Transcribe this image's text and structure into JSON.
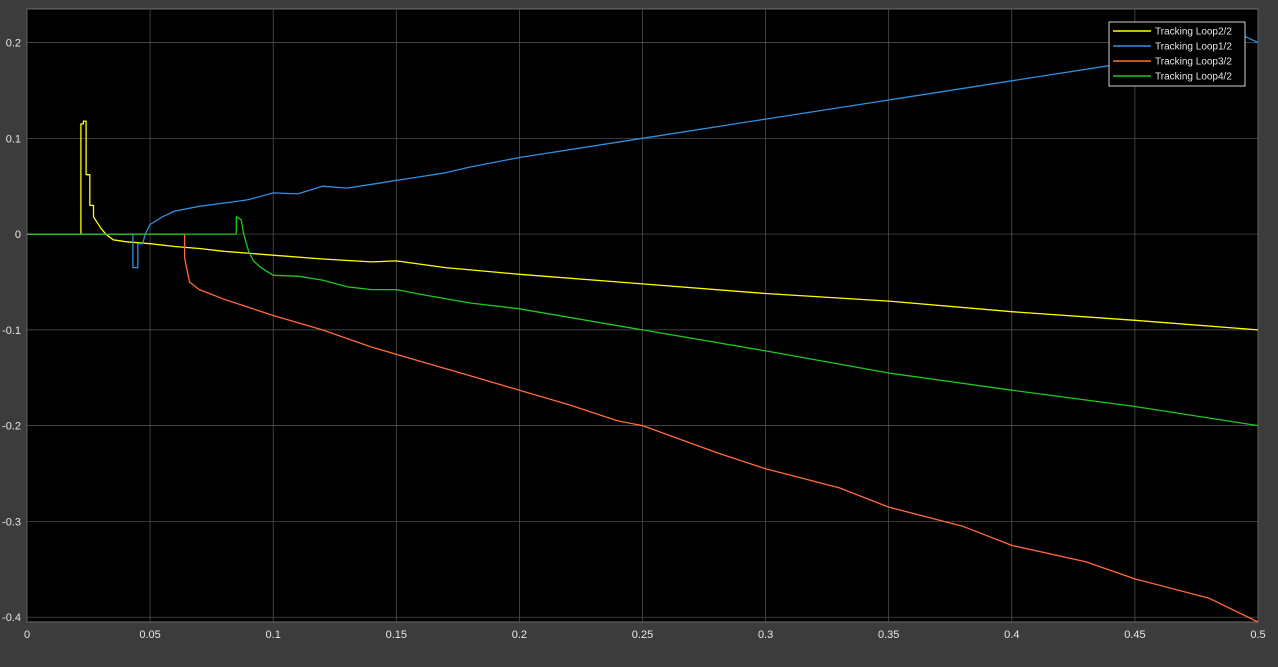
{
  "chart_data": {
    "type": "line",
    "title": "",
    "xlabel": "",
    "ylabel": "",
    "xlim": [
      0,
      0.5
    ],
    "ylim": [
      -0.405,
      0.235
    ],
    "grid": true,
    "legend_placement": "top-right",
    "x_ticks": [
      0,
      0.05,
      0.1,
      0.15,
      0.2,
      0.25,
      0.3,
      0.35,
      0.4,
      0.45,
      0.5
    ],
    "x_tick_labels": [
      "0",
      "0.05",
      "0.1",
      "0.15",
      "0.2",
      "0.25",
      "0.3",
      "0.35",
      "0.4",
      "0.45",
      "0.5"
    ],
    "y_ticks": [
      0.2,
      0.1,
      0,
      -0.1,
      -0.2,
      -0.3,
      -0.4
    ],
    "y_tick_labels": [
      "0.2",
      "0.1",
      "0",
      "-0.1",
      "-0.2",
      "-0.3",
      "-0.4"
    ],
    "colors": {
      "background": "#000000",
      "figure": "#3c3c3c",
      "grid": "#5a5a5a",
      "text": "#e6e6e6"
    },
    "series": [
      {
        "name": "Tracking Loop2/2",
        "color": "#ffff00",
        "x": [
          0,
          0.0219,
          0.0219,
          0.0229,
          0.0229,
          0.024,
          0.024,
          0.0255,
          0.0255,
          0.027,
          0.027,
          0.03,
          0.032,
          0.035,
          0.04,
          0.05,
          0.06,
          0.07,
          0.08,
          0.1,
          0.12,
          0.14,
          0.15,
          0.17,
          0.2,
          0.25,
          0.3,
          0.35,
          0.4,
          0.45,
          0.5
        ],
        "y": [
          0,
          0,
          0.115,
          0.115,
          0.118,
          0.118,
          0.062,
          0.062,
          0.03,
          0.03,
          0.018,
          0.006,
          0,
          -0.006,
          -0.008,
          -0.01,
          -0.013,
          -0.015,
          -0.018,
          -0.022,
          -0.026,
          -0.029,
          -0.028,
          -0.035,
          -0.042,
          -0.052,
          -0.062,
          -0.07,
          -0.081,
          -0.09,
          -0.1
        ]
      },
      {
        "name": "Tracking Loop1/2",
        "color": "#2f8fe0",
        "x": [
          0,
          0.043,
          0.043,
          0.045,
          0.045,
          0.047,
          0.048,
          0.05,
          0.055,
          0.06,
          0.07,
          0.085,
          0.09,
          0.1,
          0.11,
          0.12,
          0.13,
          0.14,
          0.15,
          0.16,
          0.17,
          0.18,
          0.2,
          0.25,
          0.3,
          0.35,
          0.4,
          0.45,
          0.49,
          0.492,
          0.495,
          0.5
        ],
        "y": [
          0,
          0,
          -0.035,
          -0.035,
          -0.01,
          -0.01,
          0,
          0.01,
          0.018,
          0.024,
          0.029,
          0.034,
          0.036,
          0.043,
          0.042,
          0.05,
          0.048,
          0.052,
          0.056,
          0.06,
          0.064,
          0.07,
          0.08,
          0.1,
          0.12,
          0.14,
          0.16,
          0.18,
          0.195,
          0.2,
          0.206,
          0.2
        ]
      },
      {
        "name": "Tracking Loop3/2",
        "color": "#ff6a3d",
        "x": [
          0,
          0.064,
          0.064,
          0.066,
          0.07,
          0.08,
          0.1,
          0.12,
          0.14,
          0.16,
          0.18,
          0.2,
          0.22,
          0.24,
          0.25,
          0.28,
          0.3,
          0.33,
          0.35,
          0.38,
          0.4,
          0.43,
          0.45,
          0.48,
          0.5
        ],
        "y": [
          0,
          0,
          -0.025,
          -0.05,
          -0.058,
          -0.068,
          -0.085,
          -0.1,
          -0.118,
          -0.133,
          -0.148,
          -0.163,
          -0.178,
          -0.195,
          -0.2,
          -0.228,
          -0.245,
          -0.265,
          -0.285,
          -0.305,
          -0.325,
          -0.342,
          -0.36,
          -0.38,
          -0.405
        ]
      },
      {
        "name": "Tracking Loop4/2",
        "color": "#1ec81e",
        "x": [
          0,
          0.085,
          0.085,
          0.087,
          0.088,
          0.09,
          0.092,
          0.095,
          0.1,
          0.11,
          0.12,
          0.13,
          0.14,
          0.15,
          0.16,
          0.18,
          0.2,
          0.25,
          0.3,
          0.35,
          0.4,
          0.45,
          0.5
        ],
        "y": [
          0,
          0,
          0.018,
          0.015,
          0,
          -0.018,
          -0.028,
          -0.035,
          -0.043,
          -0.044,
          -0.048,
          -0.055,
          -0.058,
          -0.058,
          -0.063,
          -0.072,
          -0.078,
          -0.1,
          -0.122,
          -0.145,
          -0.163,
          -0.18,
          -0.2
        ]
      }
    ]
  }
}
